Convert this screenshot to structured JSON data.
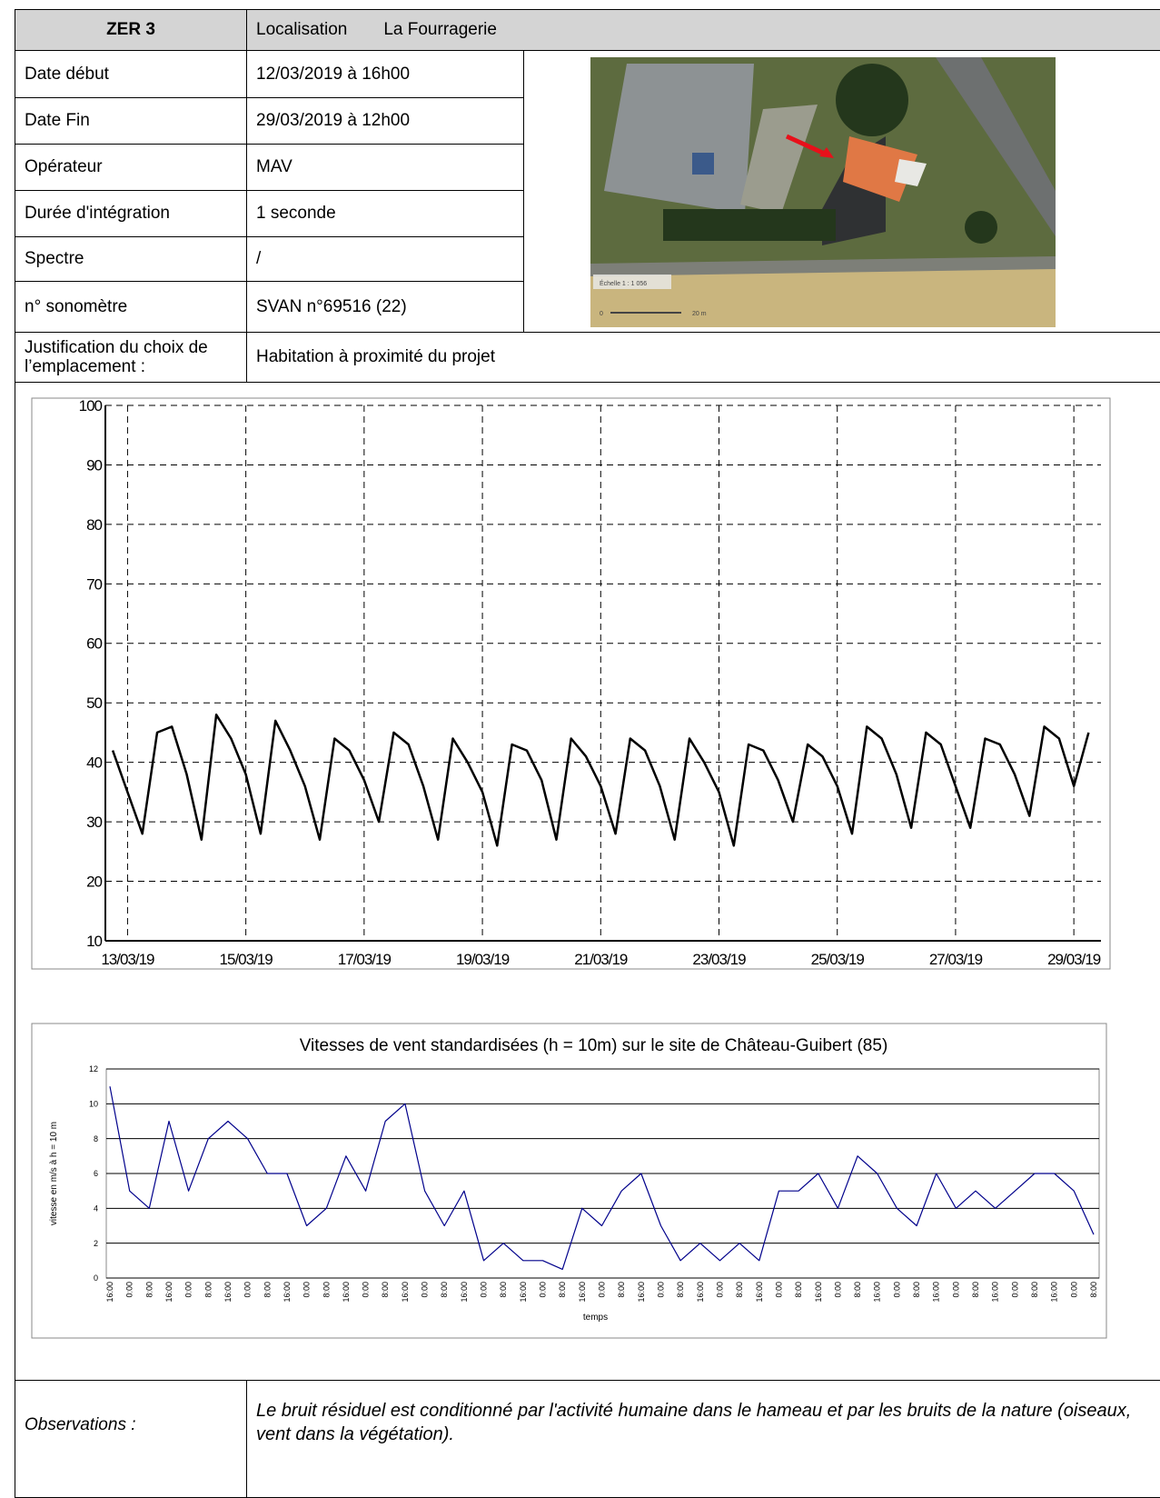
{
  "header": {
    "title": "ZER 3",
    "location_label": "Localisation",
    "location": "La Fourragerie"
  },
  "fields": [
    {
      "label": "Date début",
      "value": "12/03/2019 à 16h00"
    },
    {
      "label": "Date Fin",
      "value": "29/03/2019 à 12h00"
    },
    {
      "label": "Opérateur",
      "value": "MAV"
    },
    {
      "label": "Durée d'intégration",
      "value": "1 seconde"
    },
    {
      "label": "Spectre",
      "value": "/"
    },
    {
      "label": "n° sonomètre",
      "value": "SVAN n°69516 (22)"
    }
  ],
  "photo": {
    "scale": "Échelle 1 : 1 056",
    "scale_start": "0",
    "scale_end": "20 m"
  },
  "justification": {
    "label": "Justification du choix de l’emplacement :",
    "value": "Habitation à proximité du projet"
  },
  "chart_data": [
    {
      "type": "line",
      "x": [
        "2019-03-12T18:00",
        "2019-03-13T00:00",
        "2019-03-13T06:00",
        "2019-03-13T12:00",
        "2019-03-13T18:00",
        "2019-03-14T00:00",
        "2019-03-14T06:00",
        "2019-03-14T12:00",
        "2019-03-14T18:00",
        "2019-03-15T00:00",
        "2019-03-15T06:00",
        "2019-03-15T12:00",
        "2019-03-15T18:00",
        "2019-03-16T00:00",
        "2019-03-16T06:00",
        "2019-03-16T12:00",
        "2019-03-16T18:00",
        "2019-03-17T00:00",
        "2019-03-17T06:00",
        "2019-03-17T12:00",
        "2019-03-17T18:00",
        "2019-03-18T00:00",
        "2019-03-18T06:00",
        "2019-03-18T12:00",
        "2019-03-18T18:00",
        "2019-03-19T00:00",
        "2019-03-19T06:00",
        "2019-03-19T12:00",
        "2019-03-19T18:00",
        "2019-03-20T00:00",
        "2019-03-20T06:00",
        "2019-03-20T12:00",
        "2019-03-20T18:00",
        "2019-03-21T00:00",
        "2019-03-21T06:00",
        "2019-03-21T12:00",
        "2019-03-21T18:00",
        "2019-03-22T00:00",
        "2019-03-22T06:00",
        "2019-03-22T12:00",
        "2019-03-22T18:00",
        "2019-03-23T00:00",
        "2019-03-23T06:00",
        "2019-03-23T12:00",
        "2019-03-23T18:00",
        "2019-03-24T00:00",
        "2019-03-24T06:00",
        "2019-03-24T12:00",
        "2019-03-24T18:00",
        "2019-03-25T00:00",
        "2019-03-25T06:00",
        "2019-03-25T12:00",
        "2019-03-25T18:00",
        "2019-03-26T00:00",
        "2019-03-26T06:00",
        "2019-03-26T12:00",
        "2019-03-26T18:00",
        "2019-03-27T00:00",
        "2019-03-27T06:00",
        "2019-03-27T12:00",
        "2019-03-27T18:00",
        "2019-03-28T00:00",
        "2019-03-28T06:00",
        "2019-03-28T12:00",
        "2019-03-28T18:00",
        "2019-03-29T00:00",
        "2019-03-29T06:00"
      ],
      "series": [
        {
          "color": "#000000",
          "values": [
            42,
            35,
            28,
            45,
            46,
            38,
            27,
            48,
            44,
            38,
            28,
            47,
            42,
            36,
            27,
            44,
            42,
            37,
            30,
            45,
            43,
            36,
            27,
            44,
            40,
            35,
            26,
            43,
            42,
            37,
            27,
            44,
            41,
            36,
            28,
            44,
            42,
            36,
            27,
            44,
            40,
            35,
            26,
            43,
            42,
            37,
            30,
            43,
            41,
            36,
            28,
            46,
            44,
            38,
            29,
            45,
            43,
            36,
            29,
            44,
            43,
            38,
            31,
            46,
            44,
            36,
            45
          ]
        }
      ],
      "xlim": [
        "2019-03-12T15:00",
        "2019-03-29T11:00"
      ],
      "xticks": [
        {
          "value": "2019-03-13T00:00",
          "label": "13/03/19"
        },
        {
          "value": "2019-03-15T00:00",
          "label": "15/03/19"
        },
        {
          "value": "2019-03-17T00:00",
          "label": "17/03/19"
        },
        {
          "value": "2019-03-19T00:00",
          "label": "19/03/19"
        },
        {
          "value": "2019-03-21T00:00",
          "label": "21/03/19"
        },
        {
          "value": "2019-03-23T00:00",
          "label": "23/03/19"
        },
        {
          "value": "2019-03-25T00:00",
          "label": "25/03/19"
        },
        {
          "value": "2019-03-27T00:00",
          "label": "27/03/19"
        },
        {
          "value": "2019-03-29T00:00",
          "label": "29/03/19"
        }
      ],
      "ylim": [
        10,
        100
      ],
      "yticks": [
        10,
        20,
        30,
        40,
        50,
        60,
        70,
        80,
        90,
        100
      ],
      "grid": true
    },
    {
      "type": "line",
      "title": "Vitesses de vent standardisées (h = 10m) sur le site de Château-Guibert (85)",
      "y_label": "vitesse en m/s à h = 10 m",
      "x_label": "temps",
      "categories": [
        "16:00",
        "0:00",
        "8:00",
        "16:00",
        "0:00",
        "8:00",
        "16:00",
        "0:00",
        "8:00",
        "16:00",
        "0:00",
        "8:00",
        "16:00",
        "0:00",
        "8:00",
        "16:00",
        "0:00",
        "8:00",
        "16:00",
        "0:00",
        "8:00",
        "16:00",
        "0:00",
        "8:00",
        "16:00",
        "0:00",
        "8:00",
        "16:00",
        "0:00",
        "8:00",
        "16:00",
        "0:00",
        "8:00",
        "16:00",
        "0:00",
        "8:00",
        "16:00",
        "0:00",
        "8:00",
        "16:00",
        "0:00",
        "8:00",
        "16:00",
        "0:00",
        "8:00",
        "16:00",
        "0:00",
        "8:00",
        "16:00",
        "0:00",
        "8:00"
      ],
      "series": [
        {
          "color": "#00008b",
          "values": [
            11,
            5,
            4,
            9,
            5,
            8,
            9,
            8,
            6,
            6,
            3,
            4,
            7,
            5,
            9,
            10,
            5,
            3,
            5,
            1,
            2,
            1,
            1,
            0.5,
            4,
            3,
            5,
            6,
            3,
            1,
            2,
            1,
            2,
            1,
            5,
            5,
            6,
            4,
            7,
            6,
            4,
            3,
            6,
            4,
            5,
            4,
            5,
            6,
            6,
            5,
            2.5
          ]
        }
      ],
      "ylim": [
        0,
        12
      ],
      "yticks": [
        0,
        2,
        4,
        6,
        8,
        10,
        12
      ],
      "grid": true
    }
  ],
  "observations": {
    "label": "Observations :",
    "text": "Le bruit résiduel est conditionné par l'activité humaine dans le hameau et par les bruits de la nature (oiseaux, vent dans la végétation)."
  }
}
